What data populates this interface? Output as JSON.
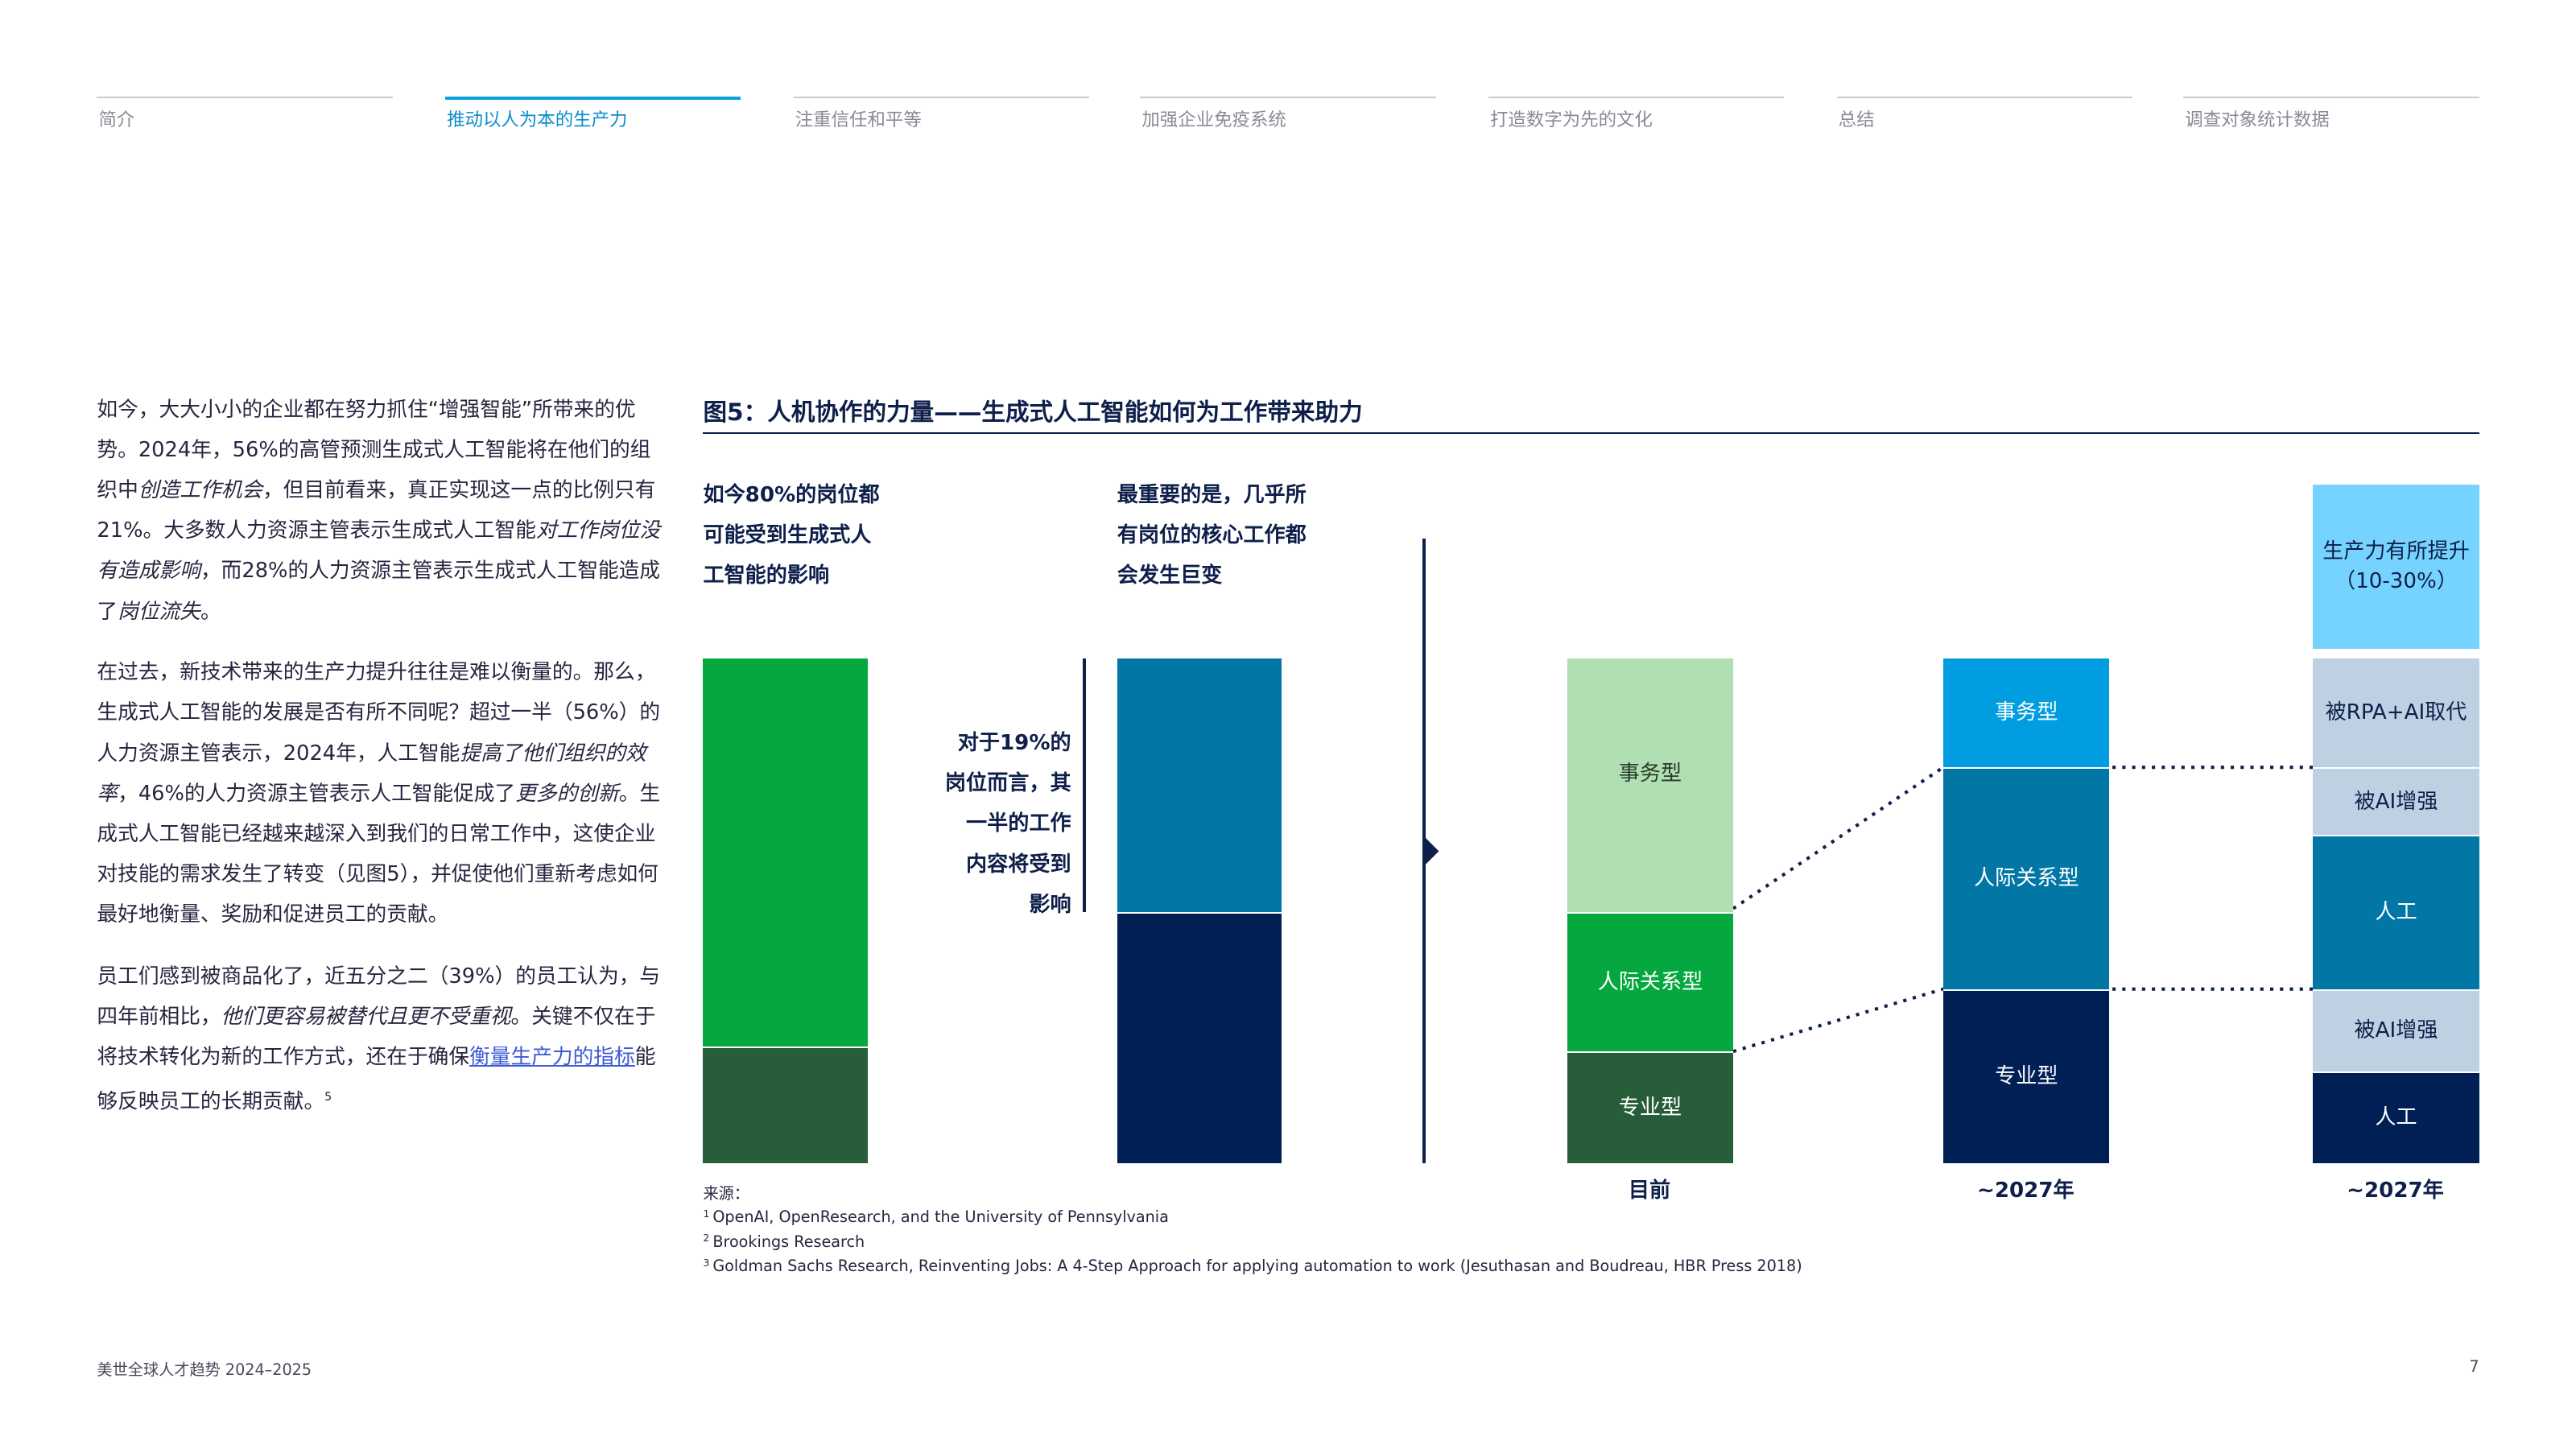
{
  "nav": {
    "items": [
      {
        "label": "简介"
      },
      {
        "label": "推动以人为本的生产力"
      },
      {
        "label": "注重信任和平等"
      },
      {
        "label": "加强企业免疫系统"
      },
      {
        "label": "打造数字为先的文化"
      },
      {
        "label": "总结"
      },
      {
        "label": "调查对象统计数据"
      }
    ]
  },
  "body": {
    "p1": {
      "t1": "如今，大大小小的企业都在努力抓住“增强智能”所带来的优势。2024年，56%的高管预测生成式人工智能将在他们的组织中",
      "i1": "创造工作机会",
      "t2": "，但目前看来，真正实现这一点的比例只有21%。大多数人力资源主管表示生成式人工智能",
      "i2": "对工作岗位没有造成影响",
      "t3": "，而28%的人力资源主管表示生成式人工智能造成了",
      "i3": "岗位流失",
      "t4": "。"
    },
    "p2": {
      "t1": "在过去，新技术带来的生产力提升往往是难以衡量的。那么，生成式人工智能的发展是否有所不同呢？超过一半（56%）的人力资源主管表示，2024年，人工智能",
      "i1": "提高了他们组织的效率",
      "t2": "，46%的人力资源主管表示人工智能促成了",
      "i2": "更多的创新",
      "t3": "。生成式人工智能已经越来越深入到我们的日常工作中，这使企业对技能的需求发生了转变（见图5），并促使他们重新考虑如何最好地衡量、奖励和促进员工的贡献。"
    },
    "p3": {
      "t1": "员工们感到被商品化了，近五分之二（39%）的员工认为，与四年前相比，",
      "i1": "他们更容易被替代且更不受重视",
      "t2": "。关键不仅在于将技术转化为新的工作方式，还在于确保",
      "link": "衡量生产力的指标",
      "t3": "能够反映员工的长期贡献。",
      "sup": "5"
    }
  },
  "figure": {
    "title": "图5：人机协作的力量——生成式人工智能如何为工作带来助力",
    "note_left": [
      "如今80%的岗位都",
      "可能受到生成式人",
      "工智能的影响"
    ],
    "note_mid": [
      "最重要的是，几乎所",
      "有岗位的核心工作都",
      "会发生巨变"
    ],
    "note_center": [
      "对于19%的",
      "岗位而言，其",
      "一半的工作",
      "内容将受到",
      "影响"
    ],
    "col_now": {
      "label": "目前",
      "top": "事务型",
      "mid": "人际关系型",
      "bot": "专业型"
    },
    "col_2027a": {
      "label": "~2027年",
      "top": "事务型",
      "mid": "人际关系型",
      "bot": "专业型"
    },
    "col_2027b": {
      "label": "~2027年",
      "boost1": "生产力有所提升",
      "boost2": "（10-30%）",
      "s1": "被RPA+AI取代",
      "s2": "被AI增强",
      "s3": "人工",
      "s4": "被AI增强",
      "s5": "人工"
    },
    "colors": {
      "green_bright": "#05a83f",
      "green_dark": "#275d38",
      "green_light": "#afdfb3",
      "teal": "#0277a6",
      "navy": "#001f54",
      "blue_bright": "#009de0",
      "sky": "#76d2ff",
      "grey_blue": "#bdd1e2"
    }
  },
  "sources": {
    "label": "来源：",
    "items": [
      {
        "num": "1",
        "text": "OpenAI, OpenResearch, and the University of Pennsylvania"
      },
      {
        "num": "2",
        "text": "Brookings Research"
      },
      {
        "num": "3",
        "text": "Goldman Sachs Research, Reinventing Jobs: A 4-Step Approach for applying automation to work (Jesuthasan and Boudreau, HBR Press 2018)"
      }
    ]
  },
  "footer": {
    "title": "美世全球人才趋势 2024–2025",
    "page": "7"
  }
}
